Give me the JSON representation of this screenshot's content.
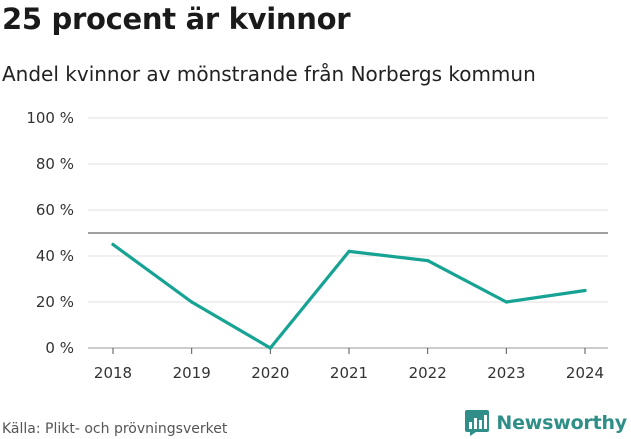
{
  "header": {
    "title": "25 procent är kvinnor",
    "subtitle": "Andel kvinnor av mönstrande från Norbergs kommun"
  },
  "footer": {
    "source": "Källa: Plikt- och prövningsverket",
    "brand": "Newsworthy"
  },
  "colors": {
    "line": "#16a394",
    "grid": "#e2e2e2",
    "reference_line": "#666666",
    "brand": "#2f8f88"
  },
  "chart_data": {
    "type": "line",
    "title": "25 procent är kvinnor",
    "subtitle": "Andel kvinnor av mönstrande från Norbergs kommun",
    "xlabel": "",
    "ylabel": "",
    "x": [
      "2018",
      "2019",
      "2020",
      "2021",
      "2022",
      "2023",
      "2024"
    ],
    "series": [
      {
        "name": "Andel kvinnor",
        "values": [
          45,
          20,
          0,
          42,
          38,
          20,
          25
        ]
      }
    ],
    "ylim": [
      0,
      100
    ],
    "yticks": [
      0,
      20,
      40,
      60,
      80,
      100
    ],
    "ytick_labels": [
      "0 %",
      "20 %",
      "40 %",
      "60 %",
      "80 %",
      "100 %"
    ],
    "reference_line": 50,
    "grid": true
  }
}
